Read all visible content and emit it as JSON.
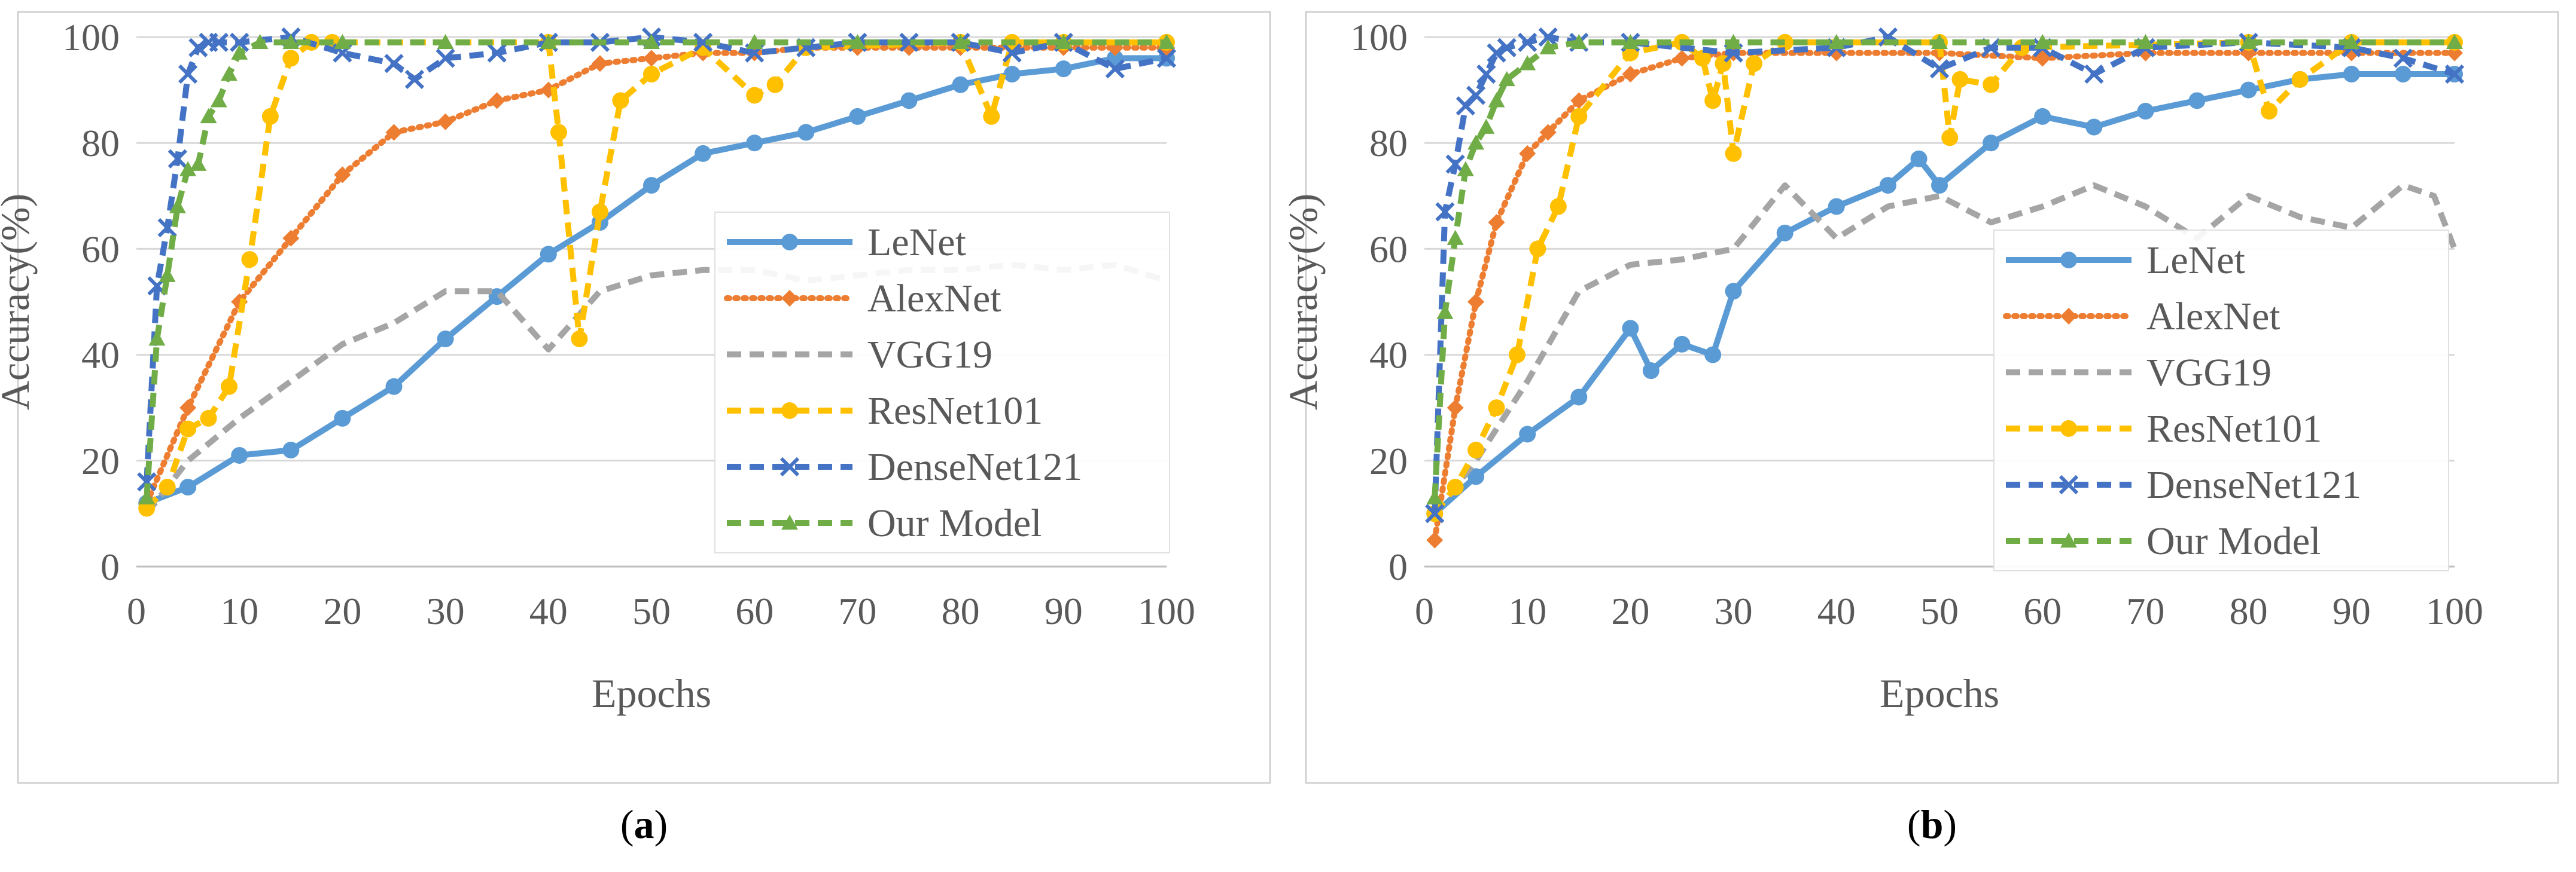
{
  "figure": {
    "captions": [
      "a",
      "b"
    ]
  },
  "colors": {
    "LeNet": "#5b9bd5",
    "AlexNet": "#ed7d31",
    "VGG19": "#a5a5a5",
    "ResNet101": "#ffc000",
    "DenseNet121": "#4472c4",
    "Our Model": "#70ad47"
  },
  "chart_data": [
    {
      "type": "line",
      "panel": "a",
      "title": "",
      "xlabel": "Epochs",
      "ylabel": "Accuracy(%)",
      "xlim": [
        0,
        100
      ],
      "ylim": [
        0,
        100
      ],
      "xticks": [
        0,
        10,
        20,
        30,
        40,
        50,
        60,
        70,
        80,
        90,
        100
      ],
      "yticks": [
        0,
        20,
        40,
        60,
        80,
        100
      ],
      "legend_position": "right",
      "series": [
        {
          "name": "LeNet",
          "marker": "circle",
          "dash": "solid",
          "x": [
            1,
            5,
            10,
            15,
            20,
            25,
            30,
            35,
            40,
            45,
            50,
            55,
            60,
            65,
            70,
            75,
            80,
            85,
            90,
            95,
            100
          ],
          "y": [
            12,
            15,
            21,
            22,
            28,
            34,
            43,
            51,
            59,
            65,
            72,
            78,
            80,
            82,
            85,
            88,
            91,
            93,
            94,
            96,
            96
          ]
        },
        {
          "name": "AlexNet",
          "marker": "diamond",
          "dash": "dotted",
          "x": [
            1,
            5,
            10,
            15,
            20,
            25,
            30,
            35,
            40,
            45,
            50,
            55,
            60,
            65,
            70,
            75,
            80,
            85,
            90,
            95,
            100
          ],
          "y": [
            12,
            30,
            50,
            62,
            74,
            82,
            84,
            88,
            90,
            95,
            96,
            97,
            97,
            98,
            98,
            98,
            98,
            98,
            98,
            98,
            98
          ]
        },
        {
          "name": "VGG19",
          "marker": "none",
          "dash": "dashed",
          "x": [
            1,
            5,
            10,
            15,
            20,
            25,
            30,
            35,
            40,
            45,
            50,
            55,
            60,
            65,
            70,
            75,
            80,
            85,
            90,
            95,
            100
          ],
          "y": [
            10,
            20,
            28,
            35,
            42,
            46,
            52,
            52,
            41,
            52,
            55,
            56,
            56,
            54,
            55,
            56,
            56,
            57,
            56,
            57,
            54
          ]
        },
        {
          "name": "ResNet101",
          "marker": "circle",
          "dash": "dashed",
          "x": [
            1,
            3,
            5,
            7,
            9,
            11,
            13,
            15,
            17,
            19,
            40,
            41,
            43,
            45,
            47,
            50,
            55,
            60,
            62,
            65,
            80,
            83,
            85,
            90,
            100
          ],
          "y": [
            11,
            15,
            26,
            28,
            34,
            58,
            85,
            96,
            99,
            99,
            99,
            82,
            43,
            67,
            88,
            93,
            98,
            89,
            91,
            98,
            99,
            85,
            99,
            99,
            99
          ]
        },
        {
          "name": "DenseNet121",
          "marker": "x",
          "dash": "dashed",
          "x": [
            1,
            2,
            3,
            4,
            5,
            6,
            7,
            8,
            10,
            15,
            20,
            25,
            27,
            30,
            35,
            40,
            45,
            50,
            55,
            60,
            65,
            70,
            75,
            80,
            85,
            90,
            95,
            100
          ],
          "y": [
            16,
            53,
            64,
            77,
            93,
            98,
            99,
            99,
            99,
            100,
            97,
            95,
            92,
            96,
            97,
            99,
            99,
            100,
            99,
            97,
            98,
            99,
            99,
            99,
            97,
            99,
            94,
            96
          ]
        },
        {
          "name": "Our Model",
          "marker": "triangle",
          "dash": "dashed",
          "x": [
            1,
            2,
            3,
            4,
            5,
            6,
            7,
            8,
            9,
            10,
            12,
            15,
            20,
            30,
            40,
            50,
            60,
            70,
            80,
            90,
            100
          ],
          "y": [
            13,
            43,
            55,
            68,
            75,
            76,
            85,
            88,
            93,
            97,
            99,
            99,
            99,
            99,
            99,
            99,
            99,
            99,
            99,
            99,
            99
          ]
        }
      ]
    },
    {
      "type": "line",
      "panel": "b",
      "title": "",
      "xlabel": "Epochs",
      "ylabel": "Accuracy(%)",
      "xlim": [
        0,
        100
      ],
      "ylim": [
        0,
        100
      ],
      "xticks": [
        0,
        10,
        20,
        30,
        40,
        50,
        60,
        70,
        80,
        90,
        100
      ],
      "yticks": [
        0,
        20,
        40,
        60,
        80,
        100
      ],
      "legend_position": "right",
      "series": [
        {
          "name": "LeNet",
          "marker": "circle",
          "dash": "solid",
          "x": [
            1,
            5,
            10,
            15,
            20,
            22,
            25,
            28,
            30,
            35,
            40,
            45,
            48,
            50,
            55,
            60,
            65,
            70,
            75,
            80,
            85,
            90,
            95,
            100
          ],
          "y": [
            10,
            17,
            25,
            32,
            45,
            37,
            42,
            40,
            52,
            63,
            68,
            72,
            77,
            72,
            80,
            85,
            83,
            86,
            88,
            90,
            92,
            93,
            93,
            93
          ]
        },
        {
          "name": "AlexNet",
          "marker": "diamond",
          "dash": "dotted",
          "x": [
            1,
            3,
            5,
            7,
            10,
            12,
            15,
            20,
            25,
            30,
            40,
            50,
            60,
            70,
            80,
            90,
            100
          ],
          "y": [
            5,
            30,
            50,
            65,
            78,
            82,
            88,
            93,
            96,
            97,
            97,
            97,
            96,
            97,
            97,
            97,
            97
          ]
        },
        {
          "name": "VGG19",
          "marker": "none",
          "dash": "dashed",
          "x": [
            1,
            5,
            10,
            15,
            20,
            25,
            30,
            35,
            40,
            45,
            50,
            55,
            60,
            65,
            70,
            75,
            80,
            85,
            90,
            95,
            98,
            100
          ],
          "y": [
            10,
            20,
            35,
            52,
            57,
            58,
            60,
            72,
            62,
            68,
            70,
            65,
            68,
            72,
            68,
            62,
            70,
            66,
            64,
            72,
            70,
            60
          ]
        },
        {
          "name": "ResNet101",
          "marker": "circle",
          "dash": "dashed",
          "x": [
            1,
            3,
            5,
            7,
            9,
            11,
            13,
            15,
            20,
            25,
            27,
            28,
            29,
            30,
            32,
            35,
            50,
            51,
            52,
            55,
            58,
            80,
            82,
            85,
            90,
            100
          ],
          "y": [
            10,
            15,
            22,
            30,
            40,
            60,
            68,
            85,
            97,
            99,
            96,
            88,
            95,
            78,
            95,
            99,
            99,
            81,
            92,
            91,
            98,
            99,
            86,
            92,
            99,
            99
          ]
        },
        {
          "name": "DenseNet121",
          "marker": "x",
          "dash": "dashed",
          "x": [
            1,
            2,
            3,
            4,
            5,
            6,
            7,
            8,
            10,
            12,
            15,
            20,
            30,
            40,
            45,
            50,
            55,
            60,
            65,
            70,
            80,
            90,
            95,
            100
          ],
          "y": [
            10,
            67,
            76,
            87,
            89,
            93,
            97,
            98,
            99,
            100,
            99,
            99,
            97,
            98,
            100,
            94,
            98,
            98,
            93,
            98,
            99,
            98,
            96,
            93
          ]
        },
        {
          "name": "Our Model",
          "marker": "triangle",
          "dash": "dashed",
          "x": [
            1,
            2,
            3,
            4,
            5,
            6,
            7,
            8,
            10,
            12,
            15,
            20,
            30,
            40,
            50,
            60,
            70,
            80,
            90,
            100
          ],
          "y": [
            13,
            48,
            62,
            75,
            80,
            83,
            88,
            92,
            95,
            98,
            99,
            99,
            99,
            99,
            99,
            99,
            99,
            99,
            99,
            99
          ]
        }
      ]
    }
  ]
}
